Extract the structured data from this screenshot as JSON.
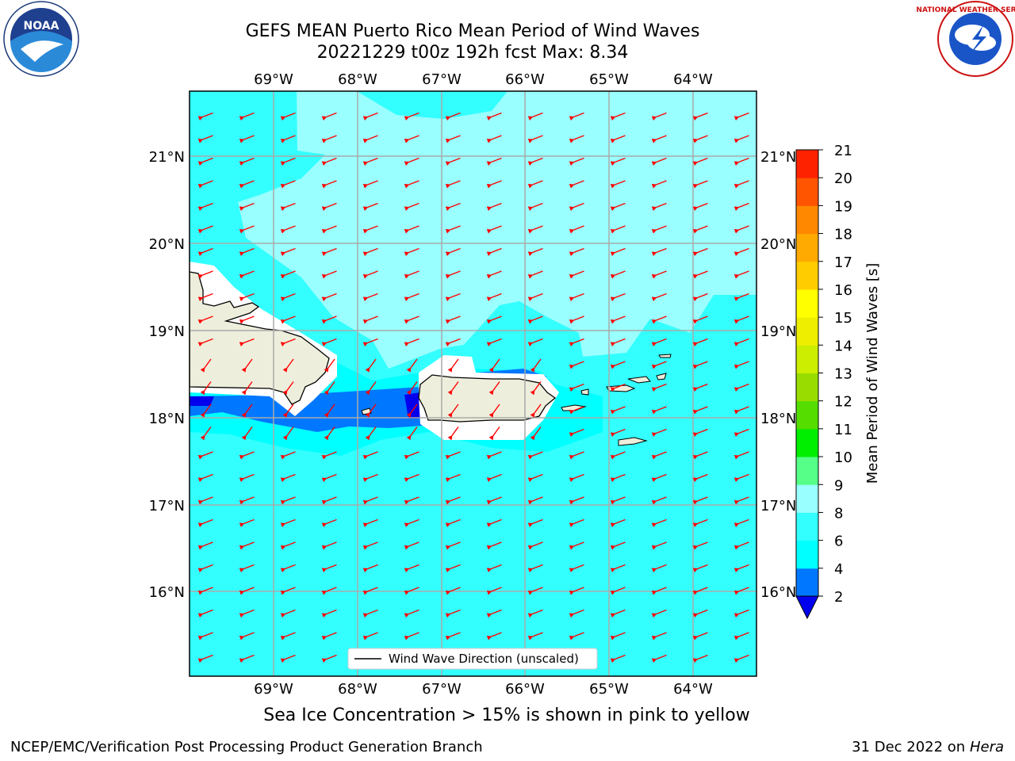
{
  "header": {
    "title_line1": "GEFS MEAN Puerto Rico Mean Period of Wind Waves",
    "title_line2": "20221229 t00z 192h fcst   Max: 8.34"
  },
  "logos": {
    "left": "noaa-logo",
    "left_text": "NOAA",
    "right": "national-weather-service-logo",
    "right_text": "NATIONAL WEATHER SERVICE"
  },
  "map": {
    "lon_labels": [
      "69°W",
      "68°W",
      "67°W",
      "66°W",
      "65°W",
      "64°W"
    ],
    "lat_labels": [
      "21°N",
      "20°N",
      "19°N",
      "18°N",
      "17°N",
      "16°N"
    ],
    "lon_range": [
      -70.0,
      -63.25
    ],
    "lat_range": [
      15.0,
      21.75
    ],
    "ocean_base_color": "#33FFFF",
    "arrow_color": "#FF0000",
    "land_color": "#EEEEDC",
    "grid": true
  },
  "colorbar": {
    "label": "Mean Period of Wind Waves [s]",
    "ticks": [
      "2",
      "4",
      "6",
      "8",
      "9",
      "10",
      "11",
      "12",
      "13",
      "14",
      "15",
      "16",
      "17",
      "18",
      "19",
      "20",
      "21"
    ],
    "colors": [
      "#0077FF",
      "#00FFFF",
      "#33FFFF",
      "#99FFFF",
      "#55FF88",
      "#00EE00",
      "#55DD00",
      "#99DD00",
      "#CCEE00",
      "#EEEE00",
      "#FFFF00",
      "#FFCC00",
      "#FFAA00",
      "#FF8800",
      "#FF5500",
      "#FF2200"
    ],
    "under_color": "#0000EE"
  },
  "legend": {
    "label": "Wind Wave Direction (unscaled)"
  },
  "footer": {
    "note": "Sea Ice Concentration > 15% is shown in pink to yellow",
    "credit_left": "NCEP/EMC/Verification Post Processing Product Generation Branch",
    "credit_date": "31 Dec 2022 on",
    "credit_host": "Hera"
  }
}
